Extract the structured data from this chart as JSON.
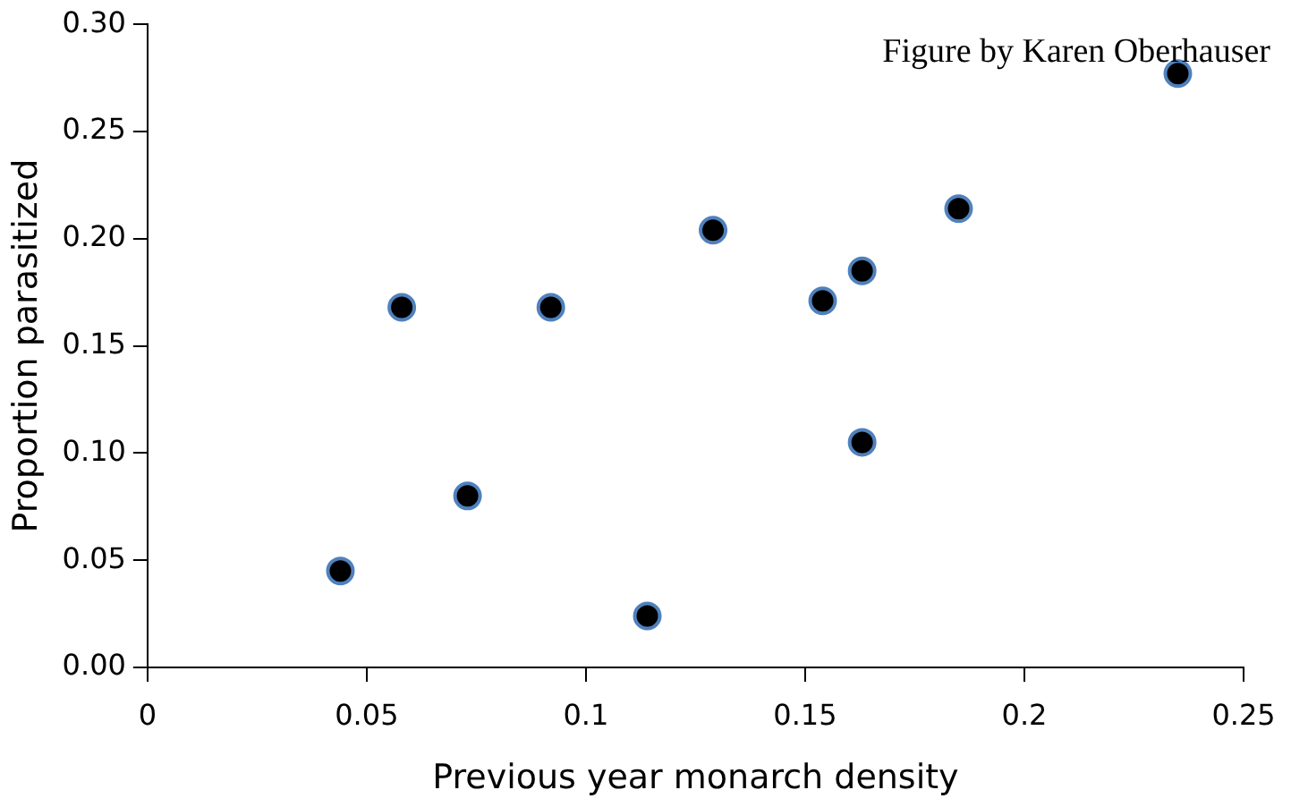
{
  "chart_data": {
    "type": "scatter",
    "xlabel": "Previous year monarch density",
    "ylabel": "Proportion parasitized",
    "annotations": [
      "Figure by Karen Oberhauser"
    ],
    "x": [
      0.044,
      0.058,
      0.073,
      0.092,
      0.114,
      0.129,
      0.154,
      0.163,
      0.163,
      0.185,
      0.235
    ],
    "series": [
      {
        "color": "#000000",
        "values": [
          0.045,
          0.168,
          0.08,
          0.168,
          0.024,
          0.204,
          0.171,
          0.185,
          0.105,
          0.214,
          0.277
        ]
      }
    ],
    "xlim": [
      0,
      0.25
    ],
    "xticks": [
      {
        "value": 0,
        "label": "0"
      },
      0.05,
      {
        "value": 0.1,
        "label": "0.1"
      },
      0.15,
      {
        "value": 0.2,
        "label": "0.2"
      },
      0.25
    ],
    "ylim": [
      0,
      0.3
    ],
    "yticks": [
      {
        "value": 0,
        "label": "0.00"
      },
      0.05,
      {
        "value": 0.1,
        "label": "0.10"
      },
      0.15,
      {
        "value": 0.2,
        "label": "0.20"
      },
      0.25,
      {
        "value": 0.3,
        "label": "0.30"
      }
    ],
    "grid": false,
    "legend": false,
    "marker": "circle"
  }
}
